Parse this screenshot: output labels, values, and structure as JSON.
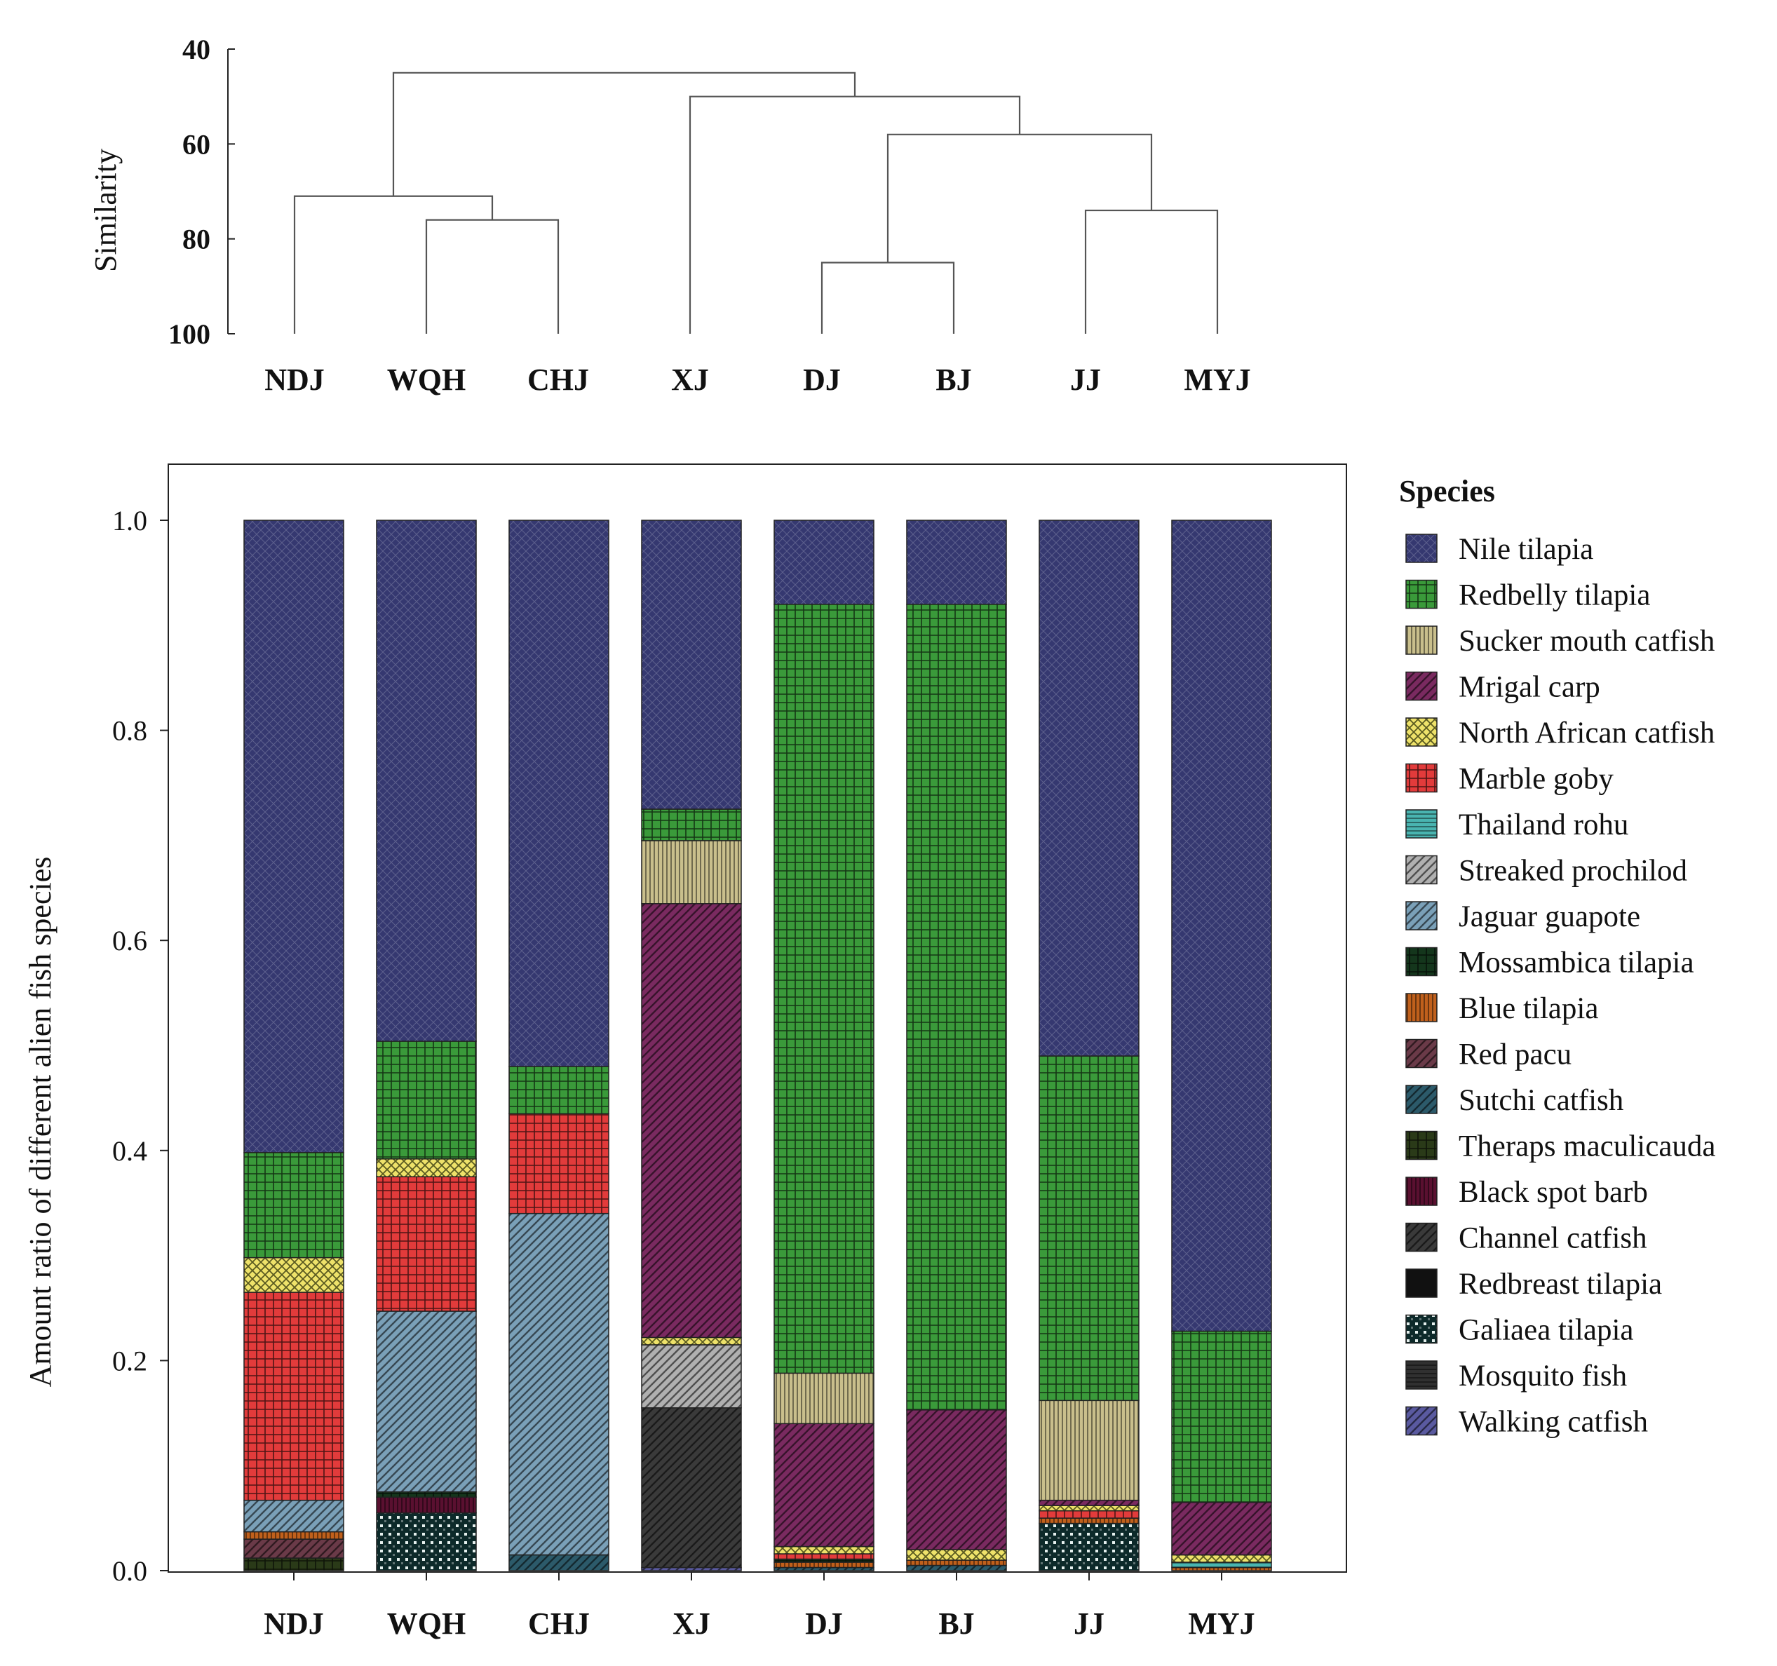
{
  "chart_data": [
    {
      "type": "dendrogram",
      "ylabel": "Similarity",
      "ylim": [
        40,
        100
      ],
      "yticks": [
        40,
        60,
        80,
        100
      ],
      "leaves": [
        "NDJ",
        "WQH",
        "CHJ",
        "XJ",
        "DJ",
        "BJ",
        "JJ",
        "MYJ"
      ],
      "merges": [
        {
          "a": "DJ",
          "b": "BJ",
          "similarity": 85
        },
        {
          "a": "JJ",
          "b": "MYJ",
          "similarity": 74
        },
        {
          "a": "WQH",
          "b": "CHJ",
          "similarity": 76
        },
        {
          "a": "NDJ",
          "b": "WQH+CHJ",
          "similarity": 71
        },
        {
          "a": "DJ+BJ",
          "b": "JJ+MYJ",
          "similarity": 58
        },
        {
          "a": "XJ",
          "b": "DJ+BJ+JJ+MYJ",
          "similarity": 50
        },
        {
          "a": "NDJ+WQH+CHJ",
          "b": "XJ+DJ+BJ+JJ+MYJ",
          "similarity": 45
        }
      ]
    },
    {
      "type": "stacked-bar",
      "ylabel": "Amount ratio of different alien fish species",
      "ylim": [
        0,
        1.0
      ],
      "yticks": [
        "0.0",
        "0.2",
        "0.4",
        "0.6",
        "0.8",
        "1.0"
      ],
      "categories": [
        "NDJ",
        "WQH",
        "CHJ",
        "XJ",
        "DJ",
        "BJ",
        "JJ",
        "MYJ"
      ],
      "legend_title": "Species",
      "series": [
        {
          "name": "Walking catfish",
          "color": "#5a5aa0",
          "pattern": "diag",
          "values": [
            0,
            0,
            0,
            0.003,
            0,
            0,
            0,
            0
          ]
        },
        {
          "name": "Mosquito fish",
          "color": "#303030",
          "pattern": "hlines",
          "values": [
            0,
            0,
            0,
            0,
            0,
            0,
            0,
            0
          ]
        },
        {
          "name": "Galiaea tilapia",
          "color": "#0d2a2a",
          "pattern": "dots",
          "values": [
            0,
            0.055,
            0,
            0,
            0,
            0,
            0.045,
            0
          ]
        },
        {
          "name": "Redbreast tilapia",
          "color": "#111111",
          "pattern": "solid",
          "values": [
            0,
            0,
            0,
            0,
            0,
            0,
            0,
            0
          ]
        },
        {
          "name": "Channel catfish",
          "color": "#3a3a3a",
          "pattern": "diag",
          "values": [
            0,
            0,
            0,
            0.152,
            0,
            0,
            0,
            0
          ]
        },
        {
          "name": "Black spot barb",
          "color": "#5a1030",
          "pattern": "vlines",
          "values": [
            0,
            0.015,
            0,
            0,
            0,
            0,
            0,
            0
          ]
        },
        {
          "name": "Theraps maculicauda",
          "color": "#2a3a18",
          "pattern": "grid",
          "values": [
            0.012,
            0,
            0,
            0,
            0,
            0,
            0,
            0
          ]
        },
        {
          "name": "Sutchi catfish",
          "color": "#2c5a6a",
          "pattern": "diag",
          "values": [
            0,
            0,
            0.015,
            0,
            0.003,
            0.005,
            0,
            0
          ]
        },
        {
          "name": "Red pacu",
          "color": "#6a3a48",
          "pattern": "diag",
          "values": [
            0.018,
            0,
            0,
            0,
            0,
            0,
            0,
            0
          ]
        },
        {
          "name": "Blue tilapia",
          "color": "#c0601c",
          "pattern": "vlines",
          "values": [
            0.007,
            0,
            0,
            0,
            0.005,
            0.005,
            0.005,
            0.003
          ]
        },
        {
          "name": "Mossambica tilapia",
          "color": "#14361c",
          "pattern": "grid",
          "values": [
            0,
            0.005,
            0,
            0,
            0.003,
            0,
            0,
            0
          ]
        },
        {
          "name": "Jaguar guapote",
          "color": "#7aa0b8",
          "pattern": "diag",
          "values": [
            0.03,
            0.172,
            0.325,
            0,
            0,
            0,
            0,
            0
          ]
        },
        {
          "name": "Streaked prochilod",
          "color": "#b0b0b0",
          "pattern": "diag",
          "values": [
            0,
            0,
            0,
            0.06,
            0,
            0,
            0,
            0
          ]
        },
        {
          "name": "Thailand rohu",
          "color": "#49b4b0",
          "pattern": "hlines",
          "values": [
            0,
            0,
            0,
            0,
            0,
            0,
            0,
            0.005
          ]
        },
        {
          "name": "Marble goby",
          "color": "#e23b3b",
          "pattern": "grid",
          "values": [
            0.198,
            0.128,
            0.095,
            0,
            0.005,
            0,
            0.007,
            0
          ]
        },
        {
          "name": "North African catfish",
          "color": "#eee26a",
          "pattern": "cross",
          "values": [
            0.033,
            0.017,
            0,
            0.007,
            0.007,
            0.01,
            0.005,
            0.007
          ]
        },
        {
          "name": "Mrigal carp",
          "color": "#7a2a60",
          "pattern": "diag",
          "values": [
            0,
            0,
            0,
            0.413,
            0.117,
            0.133,
            0.005,
            0.05
          ]
        },
        {
          "name": "Sucker mouth catfish",
          "color": "#c9bf8c",
          "pattern": "vlines",
          "values": [
            0,
            0,
            0,
            0.06,
            0.048,
            0,
            0.095,
            0
          ]
        },
        {
          "name": "Redbelly tilapia",
          "color": "#3a9a3a",
          "pattern": "grid",
          "values": [
            0.1,
            0.112,
            0.045,
            0.03,
            0.732,
            0.767,
            0.328,
            0.163
          ]
        },
        {
          "name": "Nile tilapia",
          "color": "#353870",
          "pattern": "fine",
          "values": [
            0.602,
            0.496,
            0.52,
            0.275,
            0.08,
            0.08,
            0.51,
            0.772
          ]
        }
      ],
      "legend_order": [
        "Nile tilapia",
        "Redbelly tilapia",
        "Sucker mouth catfish",
        "Mrigal carp",
        "North African catfish",
        "Marble goby",
        "Thailand rohu",
        "Streaked prochilod",
        "Jaguar guapote",
        "Mossambica tilapia",
        "Blue tilapia",
        "Red pacu",
        "Sutchi catfish",
        "Theraps maculicauda",
        "Black spot barb",
        "Channel catfish",
        "Redbreast tilapia",
        "Galiaea tilapia",
        "Mosquito fish",
        "Walking catfish"
      ]
    }
  ]
}
